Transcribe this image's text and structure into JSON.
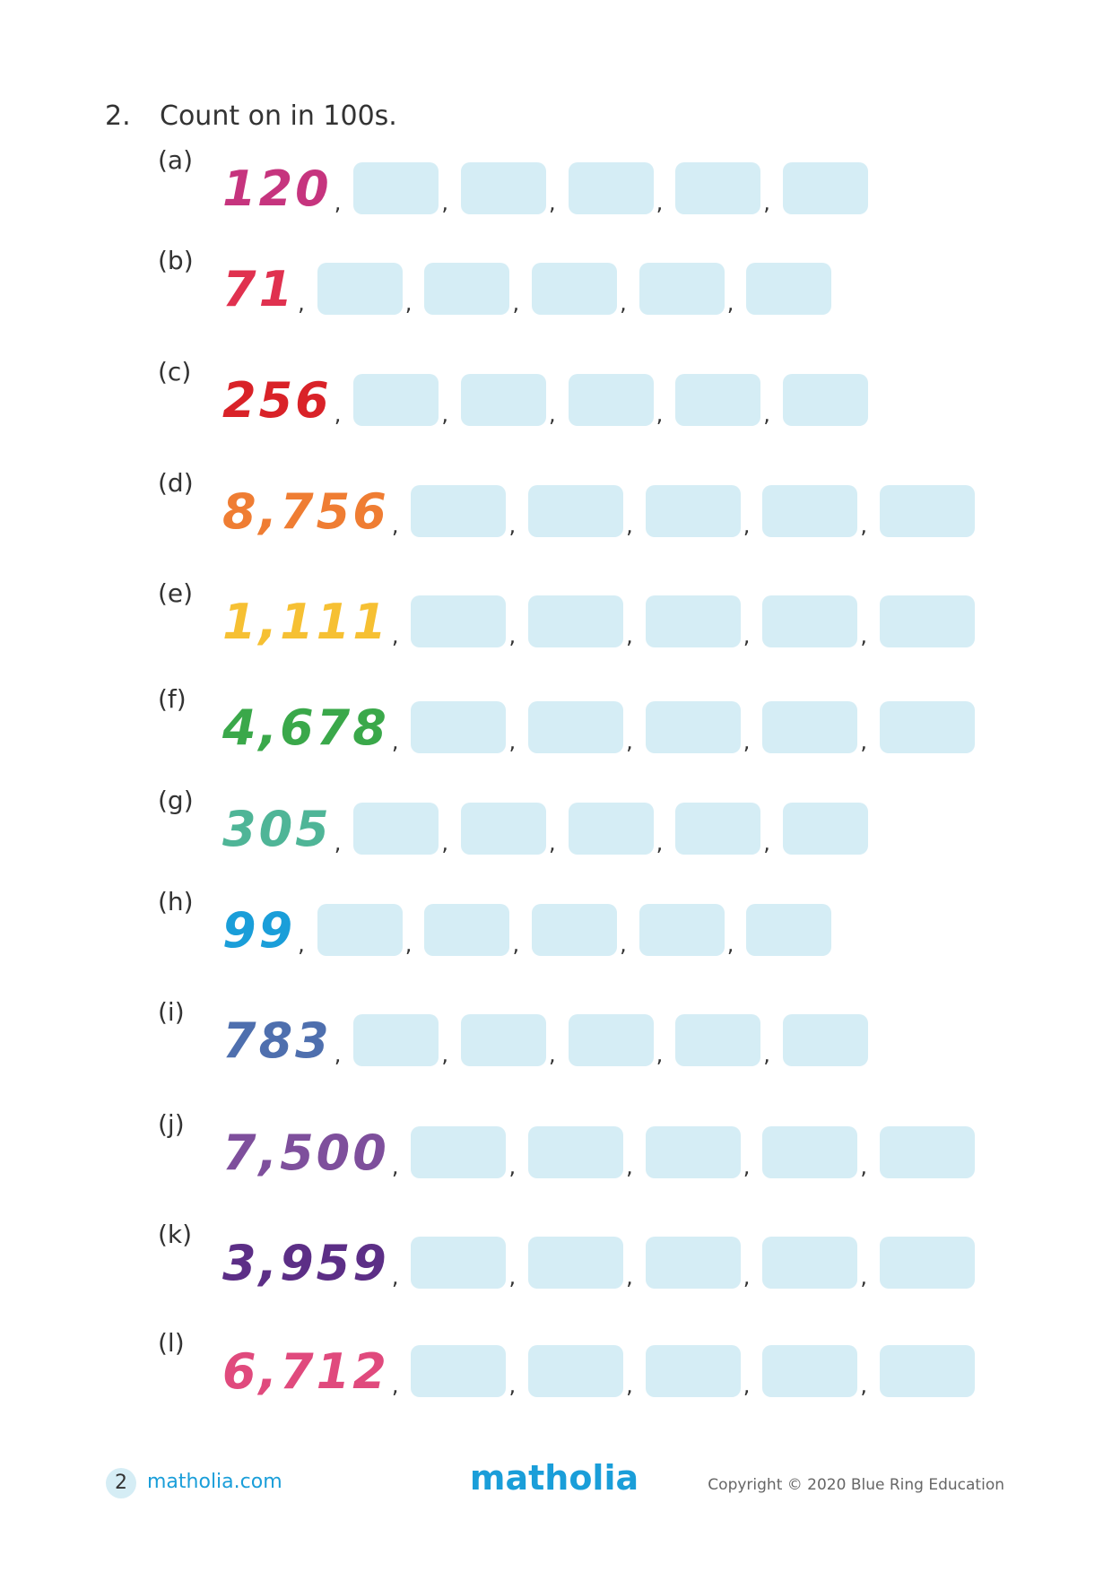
{
  "question": {
    "number": "2.",
    "text": "Count on in 100s."
  },
  "separator": ",",
  "items": [
    {
      "label": "(a)",
      "start": "120",
      "color": "#c6347e"
    },
    {
      "label": "(b)",
      "start": "71",
      "color": "#e0314f"
    },
    {
      "label": "(c)",
      "start": "256",
      "color": "#d92228"
    },
    {
      "label": "(d)",
      "start": "8,756",
      "color": "#ef7d33"
    },
    {
      "label": "(e)",
      "start": "1,111",
      "color": "#f6c033"
    },
    {
      "label": "(f)",
      "start": "4,678",
      "color": "#3aa84a"
    },
    {
      "label": "(g)",
      "start": "305",
      "color": "#4fb597"
    },
    {
      "label": "(h)",
      "start": "99",
      "color": "#1a9ed9"
    },
    {
      "label": "(i)",
      "start": "783",
      "color": "#4e6fae"
    },
    {
      "label": "(j)",
      "start": "7,500",
      "color": "#7e4f9c"
    },
    {
      "label": "(k)",
      "start": "3,959",
      "color": "#5c2e86"
    },
    {
      "label": "(l)",
      "start": "6,712",
      "color": "#e04a7d"
    }
  ],
  "footer": {
    "page": "2",
    "site": "matholia.com",
    "logo": "matholia",
    "copyright": "Copyright © 2020 Blue Ring Education"
  }
}
